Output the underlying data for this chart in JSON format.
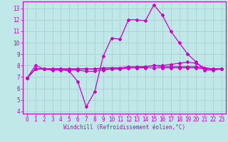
{
  "xlabel": "Windchill (Refroidissement éolien,°C)",
  "background_color": "#c0e8e8",
  "line_color": "#cc00cc",
  "grid_color": "#aacccc",
  "xlim": [
    -0.5,
    23.5
  ],
  "ylim": [
    3.8,
    13.6
  ],
  "xticks": [
    0,
    1,
    2,
    3,
    4,
    5,
    6,
    7,
    8,
    9,
    10,
    11,
    12,
    13,
    14,
    15,
    16,
    17,
    18,
    19,
    20,
    21,
    22,
    23
  ],
  "yticks": [
    4,
    5,
    6,
    7,
    8,
    9,
    10,
    11,
    12,
    13
  ],
  "series1_x": [
    0,
    1,
    2,
    3,
    4,
    5,
    6,
    7,
    8,
    9,
    10,
    11,
    12,
    13,
    14,
    15,
    16,
    17,
    18,
    19,
    20,
    21,
    22,
    23
  ],
  "series1_y": [
    6.9,
    8.0,
    7.7,
    7.7,
    7.7,
    7.5,
    6.6,
    4.4,
    5.7,
    8.8,
    10.4,
    10.3,
    12.0,
    12.0,
    11.9,
    13.3,
    12.4,
    11.0,
    10.0,
    9.0,
    8.3,
    7.6,
    7.6,
    7.7
  ],
  "series2_x": [
    0,
    1,
    2,
    3,
    4,
    5,
    6,
    7,
    8,
    9,
    10,
    11,
    12,
    13,
    14,
    15,
    16,
    17,
    18,
    19,
    20,
    21,
    22,
    23
  ],
  "series2_y": [
    6.9,
    7.7,
    7.7,
    7.7,
    7.7,
    7.7,
    7.7,
    7.7,
    7.7,
    7.8,
    7.8,
    7.8,
    7.9,
    7.9,
    7.9,
    8.0,
    8.0,
    8.1,
    8.2,
    8.3,
    8.2,
    7.8,
    7.7,
    7.7
  ],
  "series3_x": [
    0,
    1,
    2,
    3,
    4,
    5,
    6,
    7,
    8,
    9,
    10,
    11,
    12,
    13,
    14,
    15,
    16,
    17,
    18,
    19,
    20,
    21,
    22,
    23
  ],
  "series3_y": [
    6.9,
    7.7,
    7.7,
    7.6,
    7.6,
    7.6,
    7.6,
    7.5,
    7.5,
    7.6,
    7.7,
    7.7,
    7.8,
    7.8,
    7.9,
    8.0,
    7.9,
    7.9,
    7.9,
    7.9,
    7.9,
    7.8,
    7.7,
    7.7
  ],
  "series4_x": [
    0,
    1,
    2,
    3,
    4,
    5,
    6,
    7,
    8,
    9,
    10,
    11,
    12,
    13,
    14,
    15,
    16,
    17,
    18,
    19,
    20,
    21,
    22,
    23
  ],
  "series4_y": [
    6.9,
    7.7,
    7.7,
    7.7,
    7.7,
    7.7,
    7.7,
    7.7,
    7.7,
    7.7,
    7.7,
    7.7,
    7.8,
    7.8,
    7.8,
    7.8,
    7.8,
    7.8,
    7.8,
    7.8,
    7.8,
    7.7,
    7.7,
    7.7
  ],
  "tick_fontsize": 5.5,
  "xlabel_fontsize": 5.5,
  "marker_size": 2.0,
  "line_width": 0.9
}
